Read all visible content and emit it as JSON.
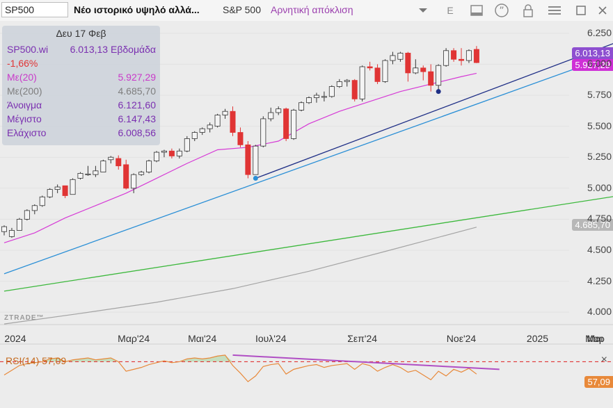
{
  "toolbar": {
    "symbol": "SP500",
    "headline": "Νέο ιστορικό υψηλό αλλά...",
    "ticker_name": "S&P 500",
    "sentiment": "Αρνητική απόκλιση",
    "icons": [
      "chevron-down-icon",
      "e-icon",
      "window-icon",
      "quote-icon",
      "lock-icon",
      "menu-icon",
      "maximize-icon",
      "close-icon"
    ],
    "e_label": "E"
  },
  "info_panel": {
    "date": "Δευ 17 Φεβ",
    "symbol": "SP500.wi",
    "close_period": "6.013,13 Εβδομάδα",
    "change": "-1,66%",
    "ma20_label": "Με(20)",
    "ma20_value": "5.927,29",
    "ma200_label": "Με(200)",
    "ma200_value": "4.685,70",
    "open_label": "Άνοιγμα",
    "open_value": "6.121,60",
    "high_label": "Μέγιστο",
    "high_value": "6.147,43",
    "low_label": "Ελάχιστο",
    "low_value": "6.008,56"
  },
  "price_pills": {
    "close": "6.013,13",
    "ma20": "5.927,29",
    "ma200": "4.685,70",
    "rsi": "57,09"
  },
  "watermark": "ZTRADE™",
  "rsi_panel": {
    "label": "RSI(14)  57,09",
    "close_symbol": "×"
  },
  "colors": {
    "up_candle": "#f4f4f4",
    "down_candle": "#e03434",
    "ma20": "#d63ad6",
    "ma200": "#a3a3a3",
    "trend_dark": "#1f2f86",
    "trend_light": "#2a8fd6",
    "trend_green": "#3cb83c",
    "rsi": "#e8893a",
    "rsi_fill": "#b8d9b0",
    "rsi_divergence": "#b04ec4",
    "rsi_level": "#e03434"
  },
  "chart_data": {
    "type": "candlestick",
    "timeframe": "weekly",
    "ylim": [
      3900,
      6350
    ],
    "yticks": [
      "6.250",
      "6.000",
      "5.750",
      "5.500",
      "5.250",
      "5.000",
      "4.750",
      "4.500",
      "4.250",
      "4.000"
    ],
    "ytick_values": [
      6250,
      6000,
      5750,
      5500,
      5250,
      5000,
      4750,
      4500,
      4250,
      4000
    ],
    "xticks": [
      "2024",
      "Μαρ'24",
      "Μαι'24",
      "Ιουλ'24",
      "Σεπ'24",
      "Νοε'24",
      "2025",
      "Μαρ",
      "Μαι"
    ],
    "xtick_weeks": [
      0,
      17,
      26,
      35,
      47,
      60,
      70,
      82,
      91
    ],
    "candles": [
      {
        "o": 4650,
        "h": 4700,
        "l": 4620,
        "c": 4690
      },
      {
        "o": 4610,
        "h": 4680,
        "l": 4600,
        "c": 4660
      },
      {
        "o": 4660,
        "h": 4760,
        "l": 4660,
        "c": 4750
      },
      {
        "o": 4750,
        "h": 4830,
        "l": 4740,
        "c": 4820
      },
      {
        "o": 4820,
        "h": 4870,
        "l": 4790,
        "c": 4860
      },
      {
        "o": 4860,
        "h": 4940,
        "l": 4850,
        "c": 4930
      },
      {
        "o": 4930,
        "h": 5000,
        "l": 4920,
        "c": 4990
      },
      {
        "o": 4990,
        "h": 5030,
        "l": 4960,
        "c": 5010
      },
      {
        "o": 5020,
        "h": 5010,
        "l": 4920,
        "c": 4940
      },
      {
        "o": 4950,
        "h": 5080,
        "l": 4950,
        "c": 5070
      },
      {
        "o": 5080,
        "h": 5130,
        "l": 5070,
        "c": 5120
      },
      {
        "o": 5110,
        "h": 5180,
        "l": 5100,
        "c": 5115
      },
      {
        "o": 5110,
        "h": 5180,
        "l": 5090,
        "c": 5140
      },
      {
        "o": 5130,
        "h": 5230,
        "l": 5130,
        "c": 5220
      },
      {
        "o": 5230,
        "h": 5260,
        "l": 5200,
        "c": 5250
      },
      {
        "o": 5240,
        "h": 5265,
        "l": 5150,
        "c": 5180
      },
      {
        "o": 5190,
        "h": 5230,
        "l": 4990,
        "c": 5000
      },
      {
        "o": 5000,
        "h": 5120,
        "l": 4960,
        "c": 5110
      },
      {
        "o": 5110,
        "h": 5140,
        "l": 5100,
        "c": 5130
      },
      {
        "o": 5130,
        "h": 5230,
        "l": 5120,
        "c": 5220
      },
      {
        "o": 5220,
        "h": 5300,
        "l": 5210,
        "c": 5290
      },
      {
        "o": 5290,
        "h": 5310,
        "l": 5250,
        "c": 5300
      },
      {
        "o": 5300,
        "h": 5320,
        "l": 5240,
        "c": 5260
      },
      {
        "o": 5260,
        "h": 5320,
        "l": 5240,
        "c": 5300
      },
      {
        "o": 5300,
        "h": 5420,
        "l": 5290,
        "c": 5400
      },
      {
        "o": 5400,
        "h": 5460,
        "l": 5380,
        "c": 5450
      },
      {
        "o": 5450,
        "h": 5490,
        "l": 5430,
        "c": 5480
      },
      {
        "o": 5480,
        "h": 5530,
        "l": 5450,
        "c": 5510
      },
      {
        "o": 5500,
        "h": 5600,
        "l": 5490,
        "c": 5590
      },
      {
        "o": 5590,
        "h": 5640,
        "l": 5560,
        "c": 5620
      },
      {
        "o": 5620,
        "h": 5660,
        "l": 5420,
        "c": 5450
      },
      {
        "o": 5450,
        "h": 5490,
        "l": 5330,
        "c": 5350
      },
      {
        "o": 5350,
        "h": 5380,
        "l": 5080,
        "c": 5110
      },
      {
        "o": 5110,
        "h": 5350,
        "l": 5110,
        "c": 5340
      },
      {
        "o": 5340,
        "h": 5580,
        "l": 5330,
        "c": 5560
      },
      {
        "o": 5560,
        "h": 5650,
        "l": 5540,
        "c": 5610
      },
      {
        "o": 5610,
        "h": 5660,
        "l": 5590,
        "c": 5640
      },
      {
        "o": 5640,
        "h": 5650,
        "l": 5380,
        "c": 5400
      },
      {
        "o": 5400,
        "h": 5640,
        "l": 5390,
        "c": 5630
      },
      {
        "o": 5630,
        "h": 5700,
        "l": 5620,
        "c": 5690
      },
      {
        "o": 5690,
        "h": 5740,
        "l": 5680,
        "c": 5730
      },
      {
        "o": 5730,
        "h": 5770,
        "l": 5690,
        "c": 5750
      },
      {
        "o": 5740,
        "h": 5780,
        "l": 5700,
        "c": 5740
      },
      {
        "o": 5740,
        "h": 5830,
        "l": 5730,
        "c": 5820
      },
      {
        "o": 5820,
        "h": 5880,
        "l": 5810,
        "c": 5860
      },
      {
        "o": 5860,
        "h": 5880,
        "l": 5820,
        "c": 5870
      },
      {
        "o": 5870,
        "h": 5880,
        "l": 5700,
        "c": 5720
      },
      {
        "o": 5720,
        "h": 5990,
        "l": 5700,
        "c": 5980
      },
      {
        "o": 5980,
        "h": 6020,
        "l": 5950,
        "c": 5970
      },
      {
        "o": 5970,
        "h": 6000,
        "l": 5840,
        "c": 5860
      },
      {
        "o": 5860,
        "h": 6040,
        "l": 5850,
        "c": 6030
      },
      {
        "o": 6030,
        "h": 6100,
        "l": 6000,
        "c": 6070
      },
      {
        "o": 6040,
        "h": 6100,
        "l": 6020,
        "c": 6090
      },
      {
        "o": 6090,
        "h": 6100,
        "l": 5860,
        "c": 5930
      },
      {
        "o": 5930,
        "h": 6040,
        "l": 5920,
        "c": 5970
      },
      {
        "o": 5970,
        "h": 5990,
        "l": 5870,
        "c": 5940
      },
      {
        "o": 5940,
        "h": 6000,
        "l": 5780,
        "c": 5830
      },
      {
        "o": 5830,
        "h": 6000,
        "l": 5790,
        "c": 5990
      },
      {
        "o": 5990,
        "h": 6130,
        "l": 5980,
        "c": 6110
      },
      {
        "o": 6110,
        "h": 6130,
        "l": 6020,
        "c": 6040
      },
      {
        "o": 6040,
        "h": 6130,
        "l": 5990,
        "c": 6030
      },
      {
        "o": 6030,
        "h": 6120,
        "l": 6010,
        "c": 6110
      },
      {
        "o": 6120,
        "h": 6147,
        "l": 6009,
        "c": 6013
      }
    ],
    "series": [
      {
        "name": "Με(20)",
        "weeks": [
          0,
          4,
          8,
          12,
          16,
          20,
          24,
          28,
          32,
          36,
          40,
          44,
          48,
          52,
          56,
          60,
          62
        ],
        "values": [
          4560,
          4640,
          4760,
          4860,
          4960,
          5080,
          5200,
          5310,
          5330,
          5380,
          5520,
          5620,
          5700,
          5780,
          5840,
          5900,
          5927
        ]
      },
      {
        "name": "Με(200)",
        "weeks": [
          0,
          10,
          20,
          30,
          40,
          50,
          62
        ],
        "values": [
          3905,
          3990,
          4080,
          4190,
          4330,
          4490,
          4686
        ]
      }
    ],
    "trendlines": [
      {
        "name": "dark",
        "from": {
          "week": 33,
          "value": 5080
        },
        "to": {
          "week": 87,
          "value": 6330
        }
      },
      {
        "name": "light",
        "from": {
          "week": 0,
          "value": 4310
        },
        "to": {
          "week": 87,
          "value": 6230
        }
      },
      {
        "name": "green",
        "from": {
          "week": 0,
          "value": 4170
        },
        "to": {
          "week": 87,
          "value": 5000
        }
      }
    ],
    "markers": [
      {
        "week": 33,
        "value": 5080
      },
      {
        "week": 57,
        "value": 5780
      }
    ],
    "rsi": {
      "ylim": [
        30,
        85
      ],
      "level": 70,
      "values": [
        56,
        61,
        66,
        68,
        69,
        70,
        73,
        74,
        70,
        72,
        73,
        74,
        72,
        73,
        74,
        70,
        60,
        62,
        64,
        67,
        69,
        71,
        69,
        70,
        73,
        74,
        73,
        74,
        76,
        77,
        66,
        58,
        49,
        55,
        65,
        67,
        68,
        57,
        62,
        64,
        66,
        67,
        64,
        66,
        67,
        68,
        62,
        68,
        66,
        60,
        64,
        67,
        64,
        59,
        61,
        56,
        51,
        60,
        55,
        62,
        59,
        63,
        57
      ]
    }
  }
}
